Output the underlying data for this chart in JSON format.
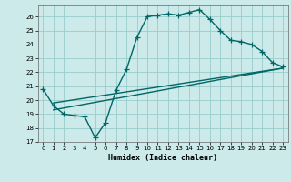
{
  "xlabel": "Humidex (Indice chaleur)",
  "bg_color": "#cceaea",
  "grid_color": "#99cccc",
  "line_color": "#006666",
  "xlim": [
    -0.5,
    23.5
  ],
  "ylim": [
    17,
    26.8
  ],
  "xticks": [
    0,
    1,
    2,
    3,
    4,
    5,
    6,
    7,
    8,
    9,
    10,
    11,
    12,
    13,
    14,
    15,
    16,
    17,
    18,
    19,
    20,
    21,
    22,
    23
  ],
  "yticks": [
    17,
    18,
    19,
    20,
    21,
    22,
    23,
    24,
    25,
    26
  ],
  "line1_x": [
    0,
    1,
    2,
    3,
    4,
    5,
    6,
    7,
    8,
    9,
    10,
    11,
    12,
    13,
    14,
    15,
    16,
    17,
    18,
    19,
    20,
    21,
    22,
    23
  ],
  "line1_y": [
    20.8,
    19.6,
    19.0,
    18.9,
    18.8,
    17.3,
    18.4,
    20.7,
    22.2,
    24.5,
    26.0,
    26.1,
    26.2,
    26.1,
    26.3,
    26.5,
    25.8,
    25.0,
    24.3,
    24.2,
    24.0,
    23.5,
    22.7,
    22.4
  ],
  "line2_x": [
    1,
    23
  ],
  "line2_y": [
    19.3,
    22.3
  ],
  "line3_x": [
    1,
    23
  ],
  "line3_y": [
    19.8,
    22.3
  ],
  "linewidth": 1.0
}
